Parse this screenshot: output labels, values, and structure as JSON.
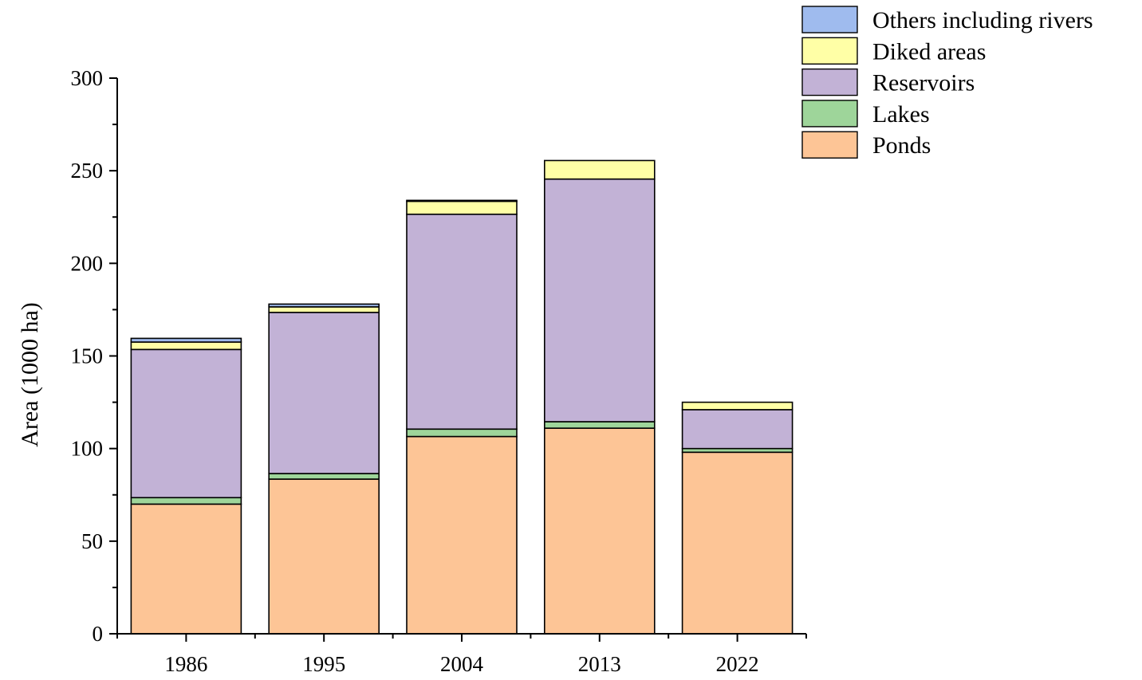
{
  "chart_data": {
    "type": "bar",
    "stacked": true,
    "categories": [
      "1986",
      "1995",
      "2004",
      "2013",
      "2022"
    ],
    "series": [
      {
        "name": "Ponds",
        "color": "#fdc596",
        "values": [
          70,
          83.5,
          106.5,
          111,
          98
        ]
      },
      {
        "name": "Lakes",
        "color": "#9ed59a",
        "values": [
          3.5,
          3,
          4,
          3.5,
          2
        ]
      },
      {
        "name": "Reservoirs",
        "color": "#c2b2d6",
        "values": [
          80,
          87,
          116,
          131,
          21
        ]
      },
      {
        "name": "Diked areas",
        "color": "#ffffa6",
        "values": [
          4,
          3,
          7,
          10,
          4
        ]
      },
      {
        "name": "Others including rivers",
        "color": "#9fbbee",
        "values": [
          2,
          1.5,
          0.5,
          0,
          0
        ]
      }
    ],
    "title": "",
    "xlabel": "",
    "ylabel": "Area (1000 ha)",
    "ylim": [
      0,
      300
    ],
    "yticks": [
      "0",
      "50",
      "100",
      "150",
      "200",
      "250",
      "300"
    ],
    "grid": false,
    "legend_position": "top-right",
    "legend_order": [
      "Others including rivers",
      "Diked areas",
      "Reservoirs",
      "Lakes",
      "Ponds"
    ]
  }
}
